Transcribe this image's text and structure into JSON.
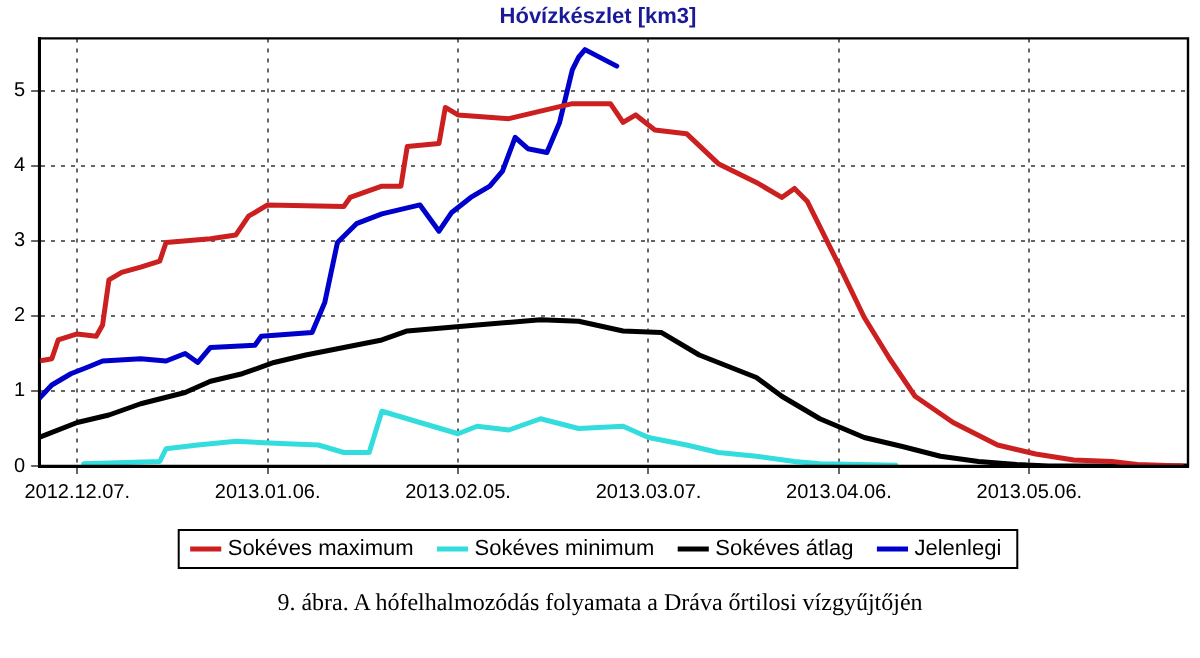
{
  "chart_data": {
    "type": "line",
    "title": "Hóvízkészlet [km3]",
    "xlim": [
      "2012-12-01",
      "2013-05-31"
    ],
    "xticks": [
      {
        "value": "2012-12-07",
        "label": "2012.12.07."
      },
      {
        "value": "2013-01-06",
        "label": "2013.01.06."
      },
      {
        "value": "2013-02-05",
        "label": "2013.02.05."
      },
      {
        "value": "2013-03-07",
        "label": "2013.03.07."
      },
      {
        "value": "2013-04-06",
        "label": "2013.04.06."
      },
      {
        "value": "2013-05-06",
        "label": "2013.05.06."
      }
    ],
    "ylim": [
      0,
      5.7
    ],
    "yticks": [
      0,
      1,
      2,
      3,
      4,
      5
    ],
    "grid": true,
    "legend": "bottom",
    "marker": "none",
    "line_style": "solid",
    "annotations": [
      "9. ábra. A hófelhalmozódás folyamata a Dráva őrtilosi vízgyűjtőjén"
    ],
    "series": [
      {
        "name": "Sokéves maximum",
        "color": "#cc1f1f",
        "x": [
          "2012-12-01",
          "2012-12-03",
          "2012-12-04",
          "2012-12-07",
          "2012-12-10",
          "2012-12-11",
          "2012-12-12",
          "2012-12-14",
          "2012-12-17",
          "2012-12-20",
          "2012-12-21",
          "2012-12-28",
          "2013-01-01",
          "2013-01-03",
          "2013-01-06",
          "2013-01-18",
          "2013-01-19",
          "2013-01-24",
          "2013-01-27",
          "2013-01-28",
          "2013-02-02",
          "2013-02-03",
          "2013-02-05",
          "2013-02-13",
          "2013-02-18",
          "2013-02-23",
          "2013-03-01",
          "2013-03-03",
          "2013-03-05",
          "2013-03-08",
          "2013-03-13",
          "2013-03-18",
          "2013-03-24",
          "2013-03-28",
          "2013-03-30",
          "2013-04-01",
          "2013-04-06",
          "2013-04-10",
          "2013-04-14",
          "2013-04-18",
          "2013-04-24",
          "2013-05-01",
          "2013-05-07",
          "2013-05-13",
          "2013-05-19",
          "2013-05-23",
          "2013-05-30"
        ],
        "values": [
          1.4,
          1.43,
          1.68,
          1.76,
          1.73,
          1.88,
          2.48,
          2.58,
          2.65,
          2.73,
          2.98,
          3.03,
          3.08,
          3.33,
          3.48,
          3.46,
          3.58,
          3.73,
          3.73,
          4.26,
          4.3,
          4.78,
          4.68,
          4.63,
          4.73,
          4.83,
          4.83,
          4.58,
          4.68,
          4.48,
          4.43,
          4.03,
          3.78,
          3.58,
          3.7,
          3.53,
          2.68,
          1.98,
          1.43,
          0.93,
          0.58,
          0.28,
          0.16,
          0.08,
          0.06,
          0.02,
          0
        ]
      },
      {
        "name": "Sokéves minimum",
        "color": "#33dddd",
        "x": [
          "2012-12-08",
          "2012-12-20",
          "2012-12-21",
          "2012-12-26",
          "2013-01-01",
          "2013-01-08",
          "2013-01-14",
          "2013-01-18",
          "2013-01-22",
          "2013-01-24",
          "2013-01-28",
          "2013-02-01",
          "2013-02-05",
          "2013-02-08",
          "2013-02-13",
          "2013-02-18",
          "2013-02-24",
          "2013-03-03",
          "2013-03-07",
          "2013-03-13",
          "2013-03-18",
          "2013-03-24",
          "2013-03-30",
          "2013-04-03",
          "2013-04-15"
        ],
        "values": [
          0.03,
          0.06,
          0.23,
          0.28,
          0.33,
          0.3,
          0.28,
          0.18,
          0.18,
          0.73,
          0.63,
          0.53,
          0.43,
          0.53,
          0.48,
          0.63,
          0.5,
          0.53,
          0.38,
          0.28,
          0.18,
          0.13,
          0.06,
          0.03,
          0.01
        ]
      },
      {
        "name": "Sokéves átlag",
        "color": "#000000",
        "x": [
          "2012-12-01",
          "2012-12-07",
          "2012-12-12",
          "2012-12-17",
          "2012-12-24",
          "2012-12-28",
          "2013-01-02",
          "2013-01-07",
          "2013-01-12",
          "2013-01-18",
          "2013-01-24",
          "2013-01-28",
          "2013-02-08",
          "2013-02-18",
          "2013-02-24",
          "2013-03-03",
          "2013-03-09",
          "2013-03-15",
          "2013-03-24",
          "2013-03-28",
          "2013-04-03",
          "2013-04-10",
          "2013-04-16",
          "2013-04-22",
          "2013-04-28",
          "2013-05-04",
          "2013-05-09",
          "2013-05-31"
        ],
        "values": [
          0.38,
          0.58,
          0.68,
          0.83,
          0.98,
          1.13,
          1.23,
          1.38,
          1.48,
          1.58,
          1.68,
          1.8,
          1.88,
          1.95,
          1.93,
          1.8,
          1.78,
          1.48,
          1.18,
          0.93,
          0.63,
          0.38,
          0.26,
          0.13,
          0.06,
          0.02,
          0,
          0
        ]
      },
      {
        "name": "Jelenlegi",
        "color": "#0000cc",
        "x": [
          "2012-12-01",
          "2012-12-03",
          "2012-12-06",
          "2012-12-09",
          "2012-12-11",
          "2012-12-17",
          "2012-12-21",
          "2012-12-24",
          "2012-12-26",
          "2012-12-28",
          "2013-01-04",
          "2013-01-05",
          "2013-01-13",
          "2013-01-15",
          "2013-01-17",
          "2013-01-20",
          "2013-01-24",
          "2013-01-30",
          "2013-02-02",
          "2013-02-04",
          "2013-02-07",
          "2013-02-10",
          "2013-02-12",
          "2013-02-14",
          "2013-02-16",
          "2013-02-19",
          "2013-02-21",
          "2013-02-23",
          "2013-02-24",
          "2013-02-25",
          "2013-03-02"
        ],
        "values": [
          0.9,
          1.08,
          1.23,
          1.33,
          1.4,
          1.43,
          1.4,
          1.5,
          1.38,
          1.58,
          1.61,
          1.73,
          1.78,
          2.18,
          2.98,
          3.23,
          3.36,
          3.48,
          3.13,
          3.38,
          3.58,
          3.73,
          3.93,
          4.38,
          4.23,
          4.18,
          4.58,
          5.28,
          5.45,
          5.55,
          5.33
        ]
      }
    ]
  }
}
